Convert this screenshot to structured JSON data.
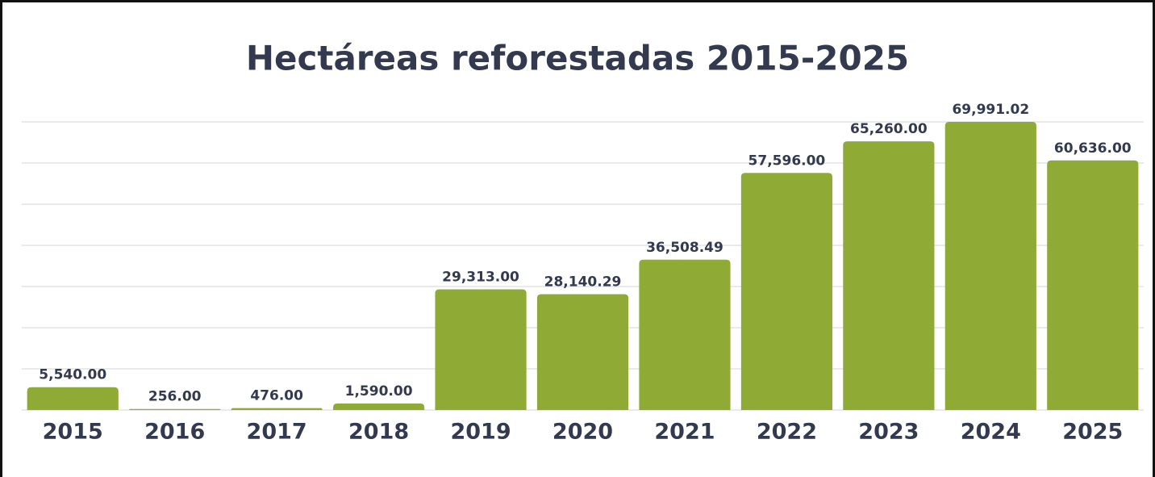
{
  "chart_data": {
    "type": "bar",
    "title": "Hectáreas reforestadas 2015-2025",
    "categories": [
      "2015",
      "2016",
      "2017",
      "2018",
      "2019",
      "2020",
      "2021",
      "2022",
      "2023",
      "2024",
      "2025"
    ],
    "values": [
      5540,
      256,
      476,
      1590,
      29313,
      28140.29,
      36508.49,
      57596,
      65260,
      69991.02,
      60636
    ],
    "value_labels": [
      "5,540.00",
      "256.00",
      "476.00",
      "1,590.00",
      "29,313.00",
      "28,140.29",
      "36,508.49",
      "57,596.00",
      "65,260.00",
      "69,991.02",
      "60,636.00"
    ],
    "color": "#8fab36",
    "ylim": [
      0,
      70000
    ],
    "yticks": [
      0,
      10000,
      20000,
      30000,
      40000,
      50000,
      60000,
      70000
    ],
    "grid": true
  }
}
